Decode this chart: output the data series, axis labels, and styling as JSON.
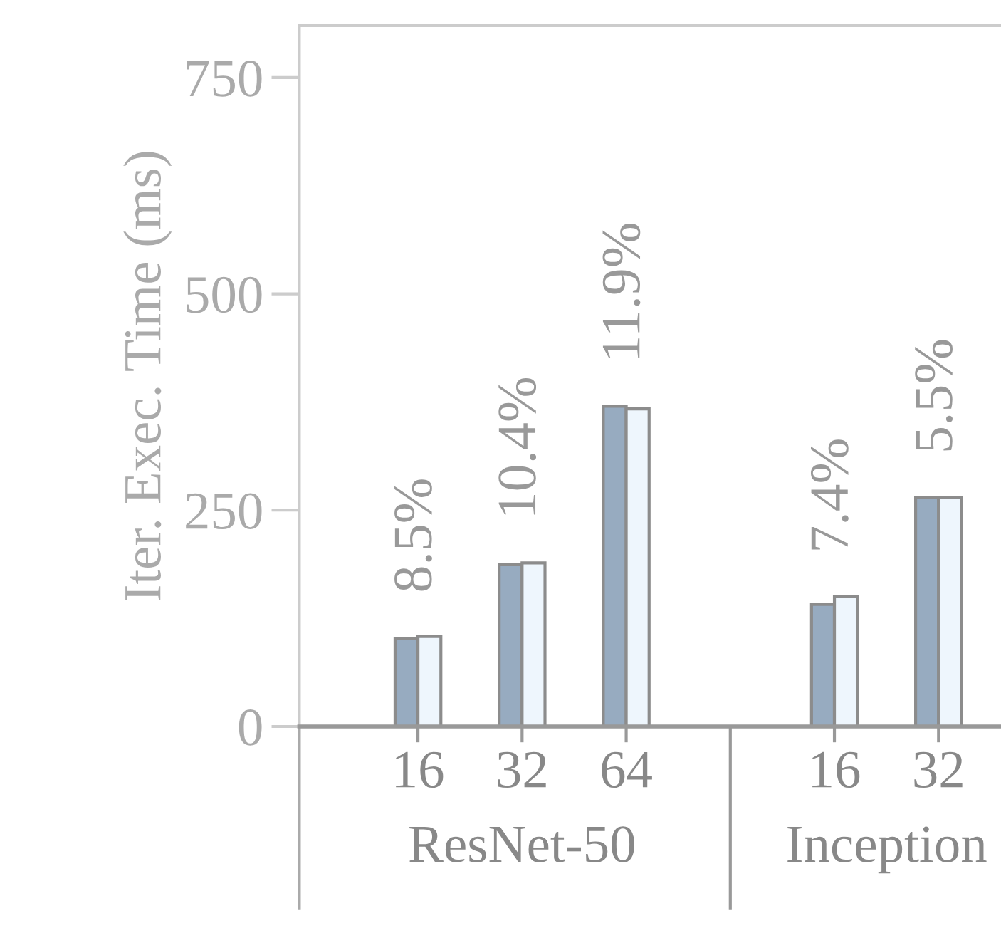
{
  "chart_data": {
    "type": "bar",
    "ylabel": "Iter. Exec. Time (ms)",
    "categories": [
      "16",
      "32",
      "64",
      null,
      "16",
      "32"
    ],
    "series": [
      {
        "color": "#97abc0",
        "values": [
          102,
          187,
          370,
          null,
          141,
          265
        ]
      },
      {
        "color": "#eef6fd",
        "values": [
          104,
          189,
          367,
          null,
          150,
          265
        ]
      }
    ],
    "annotations": [
      "8.5%",
      "10.4%",
      "11.9%",
      "7.4%",
      "5.5%",
      "ResNet-50",
      "Inception"
    ],
    "ylim": [
      0,
      810
    ],
    "yticks": [
      0,
      250,
      500,
      750
    ],
    "grid": false,
    "legend": false
  }
}
